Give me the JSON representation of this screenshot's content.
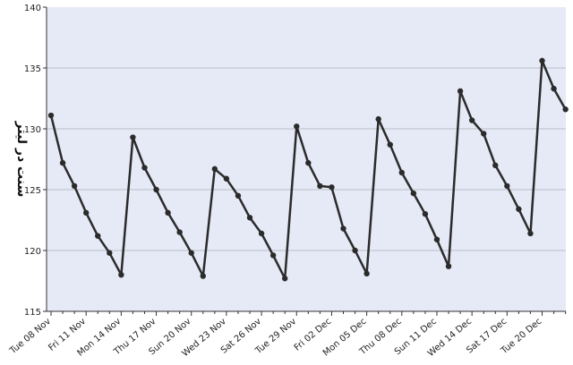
{
  "chart_data": {
    "type": "line",
    "title": "",
    "xlabel": "",
    "ylabel": "سنت در لیتر",
    "ylim": [
      115,
      140
    ],
    "yticks": [
      115,
      120,
      125,
      130,
      135,
      140
    ],
    "grid": "horizontal",
    "background": "#e6eaf6",
    "line_color": "#2b2b2b",
    "x": [
      "2016-11-08",
      "2016-11-09",
      "2016-11-10",
      "2016-11-11",
      "2016-11-12",
      "2016-11-13",
      "2016-11-14",
      "2016-11-15",
      "2016-11-16",
      "2016-11-17",
      "2016-11-18",
      "2016-11-19",
      "2016-11-20",
      "2016-11-21",
      "2016-11-22",
      "2016-11-23",
      "2016-11-24",
      "2016-11-25",
      "2016-11-26",
      "2016-11-27",
      "2016-11-28",
      "2016-11-29",
      "2016-11-30",
      "2016-12-01",
      "2016-12-02",
      "2016-12-03",
      "2016-12-04",
      "2016-12-05",
      "2016-12-06",
      "2016-12-07",
      "2016-12-08",
      "2016-12-09",
      "2016-12-10",
      "2016-12-11",
      "2016-12-12",
      "2016-12-13",
      "2016-12-14",
      "2016-12-15",
      "2016-12-16",
      "2016-12-17",
      "2016-12-18",
      "2016-12-19",
      "2016-12-20",
      "2016-12-21",
      "2016-12-22"
    ],
    "values": [
      131.1,
      127.2,
      125.3,
      123.1,
      121.2,
      119.8,
      118.0,
      129.3,
      126.8,
      125.0,
      123.1,
      121.5,
      119.8,
      117.9,
      126.7,
      125.9,
      124.5,
      122.7,
      121.4,
      119.6,
      117.7,
      130.2,
      127.2,
      125.3,
      125.2,
      121.8,
      120.0,
      118.1,
      130.8,
      128.7,
      126.4,
      124.7,
      123.0,
      120.9,
      118.7,
      133.1,
      130.7,
      129.6,
      127.0,
      125.3,
      123.4,
      121.4,
      135.6,
      133.3,
      131.6
    ],
    "x_tick_labels": [
      "Tue 08 Nov",
      "Fri 11 Nov",
      "Mon 14 Nov",
      "Thu 17 Nov",
      "Sun 20 Nov",
      "Wed 23 Nov",
      "Sat 26 Nov",
      "Tue 29 Nov",
      "Fri 02 Dec",
      "Mon 05 Dec",
      "Thu 08 Dec",
      "Sun 11 Dec",
      "Wed 14 Dec",
      "Sat 17 Dec",
      "Tue 20 Dec"
    ]
  }
}
